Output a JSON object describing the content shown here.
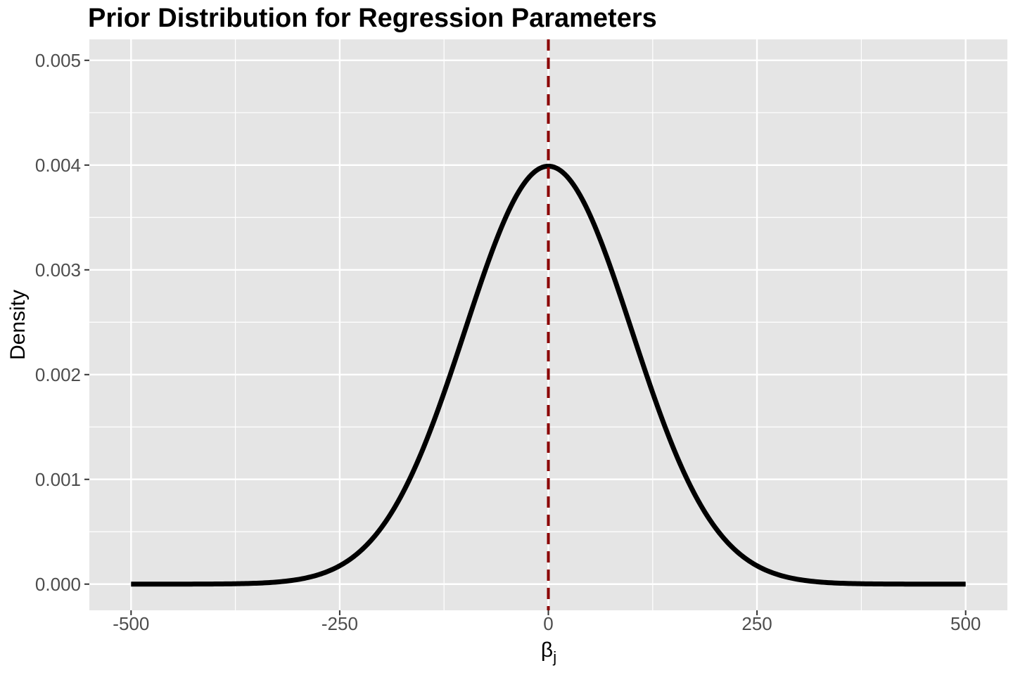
{
  "chart_data": {
    "type": "line",
    "title": "Prior Distribution for Regression Parameters",
    "xlabel": "β",
    "xlabel_subscript": "j",
    "ylabel": "Density",
    "xlim": [
      -550,
      550
    ],
    "ylim": [
      -0.00025,
      0.0052
    ],
    "x_ticks": [
      -500,
      -250,
      0,
      250,
      500
    ],
    "x_tick_labels": [
      "-500",
      "-250",
      "0",
      "250",
      "500"
    ],
    "y_ticks": [
      0,
      0.001,
      0.002,
      0.003,
      0.004,
      0.005
    ],
    "y_tick_labels": [
      "0.000",
      "0.001",
      "0.002",
      "0.003",
      "0.004",
      "0.005"
    ],
    "grid": true,
    "legend": "none",
    "series": [
      {
        "distribution": "normal",
        "mean": 0,
        "sd": 100,
        "x_range": [
          -500,
          500
        ],
        "color": "#000000",
        "x": [
          -500,
          -450,
          -400,
          -350,
          -300,
          -250,
          -200,
          -150,
          -100,
          -50,
          0,
          50,
          100,
          150,
          200,
          250,
          300,
          350,
          400,
          450,
          500
        ],
        "values": [
          0.0,
          0.0,
          0.0,
          0.0,
          0.0,
          0.0002,
          0.0005,
          0.0013,
          0.0024,
          0.0035,
          0.004,
          0.0035,
          0.0024,
          0.0013,
          0.0005,
          0.0002,
          0.0,
          0.0,
          0.0,
          0.0,
          0.0
        ]
      }
    ],
    "reference_line": {
      "orientation": "vertical",
      "x": 0,
      "style": "dashed",
      "color": "#8b0000"
    }
  },
  "colors": {
    "panel_background": "#e5e5e5",
    "grid_line": "#ffffff",
    "curve": "#000000",
    "reference_line": "#8b0000",
    "tick_label": "#4d4d4d",
    "text": "#000000"
  }
}
